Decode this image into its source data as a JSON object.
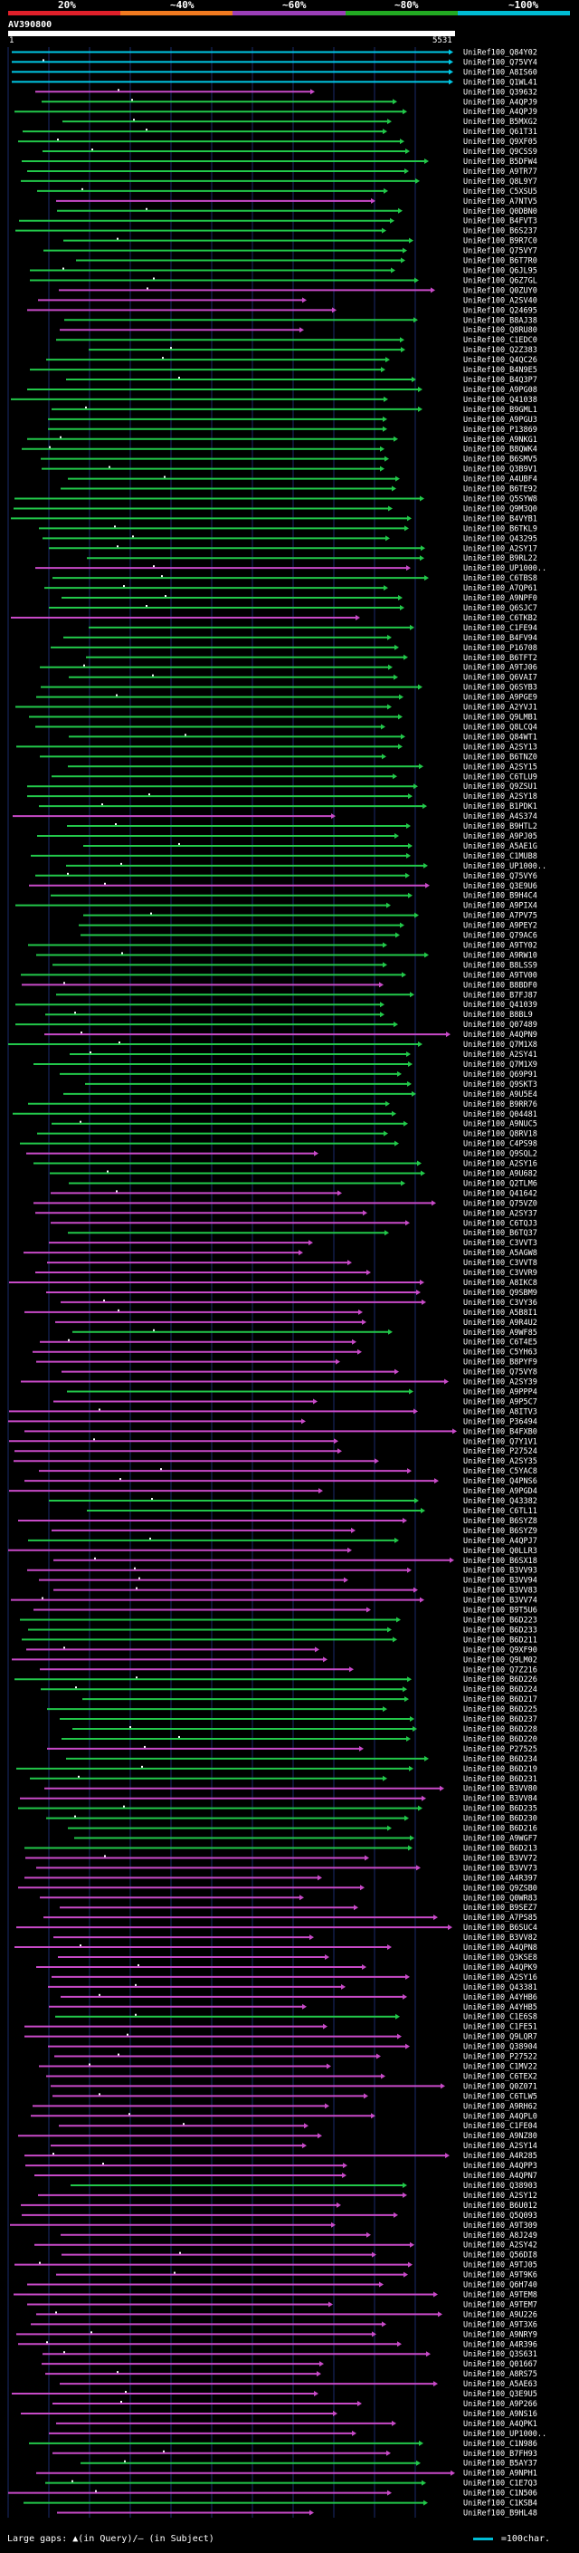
{
  "identity_scale": {
    "labels": [
      "20%",
      "~40%",
      "~60%",
      "~80%",
      "~100%"
    ],
    "colors": [
      "#e0202a",
      "#f07a20",
      "#9b3fb8",
      "#22aa22",
      "#00bcd4"
    ]
  },
  "query": {
    "name": "AV390800",
    "start": "1",
    "end": "5531"
  },
  "footer": {
    "gaps_label": "Large gaps: ▲(in Query)/— (in Subject)",
    "legend_label": "=100char."
  },
  "colors": {
    "cyan": "#00c8e6",
    "green": "#22c84a",
    "purple": "#c84ac8",
    "grid": "#1a2a6a",
    "text": "#ffffff"
  },
  "hits": [
    {
      "name": "UniRef100_Q84Y02",
      "color": "cyan"
    },
    {
      "name": "UniRef100_Q75VY4",
      "color": "cyan"
    },
    {
      "name": "UniRef100_A8IS60",
      "color": "cyan"
    },
    {
      "name": "UniRef100_Q1WL41",
      "color": "cyan"
    },
    {
      "name": "UniRef100_Q39632",
      "color": "purple"
    },
    {
      "name": "UniRef100_A4QPJ9",
      "color": "green"
    },
    {
      "name": "UniRef100_A4QPJ9",
      "color": "green"
    },
    {
      "name": "UniRef100_B5MXG2",
      "color": "green"
    },
    {
      "name": "UniRef100_Q61T31",
      "color": "green"
    },
    {
      "name": "UniRef100_Q9XF05",
      "color": "green"
    },
    {
      "name": "UniRef100_Q9CSS9",
      "color": "green"
    },
    {
      "name": "UniRef100_B5DFW4",
      "color": "green"
    },
    {
      "name": "UniRef100_A9TR77",
      "color": "green"
    },
    {
      "name": "UniRef100_Q8L9Y7",
      "color": "green"
    },
    {
      "name": "UniRef100_C5XSU5",
      "color": "green"
    },
    {
      "name": "UniRef100_A7NTV5",
      "color": "purple"
    },
    {
      "name": "UniRef100_Q0DBN0",
      "color": "green"
    },
    {
      "name": "UniRef100_B4FVT3",
      "color": "green"
    },
    {
      "name": "UniRef100_B6S237",
      "color": "green"
    },
    {
      "name": "UniRef100_B9R7C0",
      "color": "green"
    },
    {
      "name": "UniRef100_Q75VY7",
      "color": "green"
    },
    {
      "name": "UniRef100_B6T7R0",
      "color": "green"
    },
    {
      "name": "UniRef100_Q6JL95",
      "color": "green"
    },
    {
      "name": "UniRef100_Q6Z7GL",
      "color": "green"
    },
    {
      "name": "UniRef100_Q0ZUY0",
      "color": "purple"
    },
    {
      "name": "UniRef100_A2SV40",
      "color": "purple"
    },
    {
      "name": "UniRef100_Q24695",
      "color": "purple"
    },
    {
      "name": "UniRef100_B8AJ38",
      "color": "green"
    },
    {
      "name": "UniRef100_Q8RU80",
      "color": "purple"
    },
    {
      "name": "UniRef100_C1EDC0",
      "color": "green"
    },
    {
      "name": "UniRef100_Q2Z383",
      "color": "green"
    },
    {
      "name": "UniRef100_Q4QC26",
      "color": "green"
    },
    {
      "name": "UniRef100_B4N9E5",
      "color": "green"
    },
    {
      "name": "UniRef100_B4Q3P7",
      "color": "green"
    },
    {
      "name": "UniRef100_A9PG08",
      "color": "green"
    },
    {
      "name": "UniRef100_Q41038",
      "color": "green"
    },
    {
      "name": "UniRef100_B9GML1",
      "color": "green"
    },
    {
      "name": "UniRef100_A9PGU3",
      "color": "green"
    },
    {
      "name": "UniRef100_P13869",
      "color": "green"
    },
    {
      "name": "UniRef100_A9NKG1",
      "color": "green"
    },
    {
      "name": "UniRef100_B8QWK4",
      "color": "green"
    },
    {
      "name": "UniRef100_B6SMV5",
      "color": "green"
    },
    {
      "name": "UniRef100_Q3B9V1",
      "color": "green"
    },
    {
      "name": "UniRef100_A4UBF4",
      "color": "green"
    },
    {
      "name": "UniRef100_B6TE92",
      "color": "green"
    },
    {
      "name": "UniRef100_Q5SYW8",
      "color": "green"
    },
    {
      "name": "UniRef100_Q9M3Q0",
      "color": "green"
    },
    {
      "name": "UniRef100_B4VYB1",
      "color": "green"
    },
    {
      "name": "UniRef100_B6TKL9",
      "color": "green"
    },
    {
      "name": "UniRef100_Q43295",
      "color": "green"
    },
    {
      "name": "UniRef100_A2SY17",
      "color": "green"
    },
    {
      "name": "UniRef100_B9RL22",
      "color": "green"
    },
    {
      "name": "UniRef100_UP1000..",
      "color": "purple"
    },
    {
      "name": "UniRef100_C6TBS8",
      "color": "green"
    },
    {
      "name": "UniRef100_A7QP61",
      "color": "green"
    },
    {
      "name": "UniRef100_A9NPF0",
      "color": "green"
    },
    {
      "name": "UniRef100_Q6SJC7",
      "color": "green"
    },
    {
      "name": "UniRef100_C6TKB2",
      "color": "purple"
    },
    {
      "name": "UniRef100_C1FE94",
      "color": "green"
    },
    {
      "name": "UniRef100_B4FV94",
      "color": "green"
    },
    {
      "name": "UniRef100_P16708",
      "color": "green"
    },
    {
      "name": "UniRef100_B6TFT2",
      "color": "green"
    },
    {
      "name": "UniRef100_A9TJ06",
      "color": "green"
    },
    {
      "name": "UniRef100_Q6VAI7",
      "color": "green"
    },
    {
      "name": "UniRef100_Q6SYB3",
      "color": "green"
    },
    {
      "name": "UniRef100_A9PGE9",
      "color": "green"
    },
    {
      "name": "UniRef100_A2YVJ1",
      "color": "green"
    },
    {
      "name": "UniRef100_Q9LMB1",
      "color": "green"
    },
    {
      "name": "UniRef100_Q8LCQ4",
      "color": "green"
    },
    {
      "name": "UniRef100_Q84WT1",
      "color": "green"
    },
    {
      "name": "UniRef100_A2SY13",
      "color": "green"
    },
    {
      "name": "UniRef100_B6TNZ0",
      "color": "green"
    },
    {
      "name": "UniRef100_A2SY15",
      "color": "green"
    },
    {
      "name": "UniRef100_C6TLU9",
      "color": "green"
    },
    {
      "name": "UniRef100_Q9ZSU1",
      "color": "green"
    },
    {
      "name": "UniRef100_A2SY18",
      "color": "green"
    },
    {
      "name": "UniRef100_B1PDK1",
      "color": "green"
    },
    {
      "name": "UniRef100_A4S374",
      "color": "purple"
    },
    {
      "name": "UniRef100_B9HTL2",
      "color": "green"
    },
    {
      "name": "UniRef100_A9PJ05",
      "color": "green"
    },
    {
      "name": "UniRef100_A5AE1G",
      "color": "green"
    },
    {
      "name": "UniRef100_C1MUB8",
      "color": "green"
    },
    {
      "name": "UniRef100_UP1000..",
      "color": "green"
    },
    {
      "name": "UniRef100_Q75VY6",
      "color": "green"
    },
    {
      "name": "UniRef100_Q3E9U6",
      "color": "purple"
    },
    {
      "name": "UniRef100_B9H4C4",
      "color": "green"
    },
    {
      "name": "UniRef100_A9PIX4",
      "color": "green"
    },
    {
      "name": "UniRef100_A7PV75",
      "color": "green"
    },
    {
      "name": "UniRef100_A9PEY2",
      "color": "green"
    },
    {
      "name": "UniRef100_Q79AC6",
      "color": "green"
    },
    {
      "name": "UniRef100_A9TY02",
      "color": "green"
    },
    {
      "name": "UniRef100_A9RW10",
      "color": "green"
    },
    {
      "name": "UniRef100_B8LSS9",
      "color": "green"
    },
    {
      "name": "UniRef100_A9TV00",
      "color": "green"
    },
    {
      "name": "UniRef100_B8BDF0",
      "color": "purple"
    },
    {
      "name": "UniRef100_B7FJ87",
      "color": "green"
    },
    {
      "name": "UniRef100_Q41039",
      "color": "green"
    },
    {
      "name": "UniRef100_B8BL9",
      "color": "green"
    },
    {
      "name": "UniRef100_Q07489",
      "color": "green"
    },
    {
      "name": "UniRef100_A4QPN9",
      "color": "purple"
    },
    {
      "name": "UniRef100_Q7M1X8",
      "color": "green"
    },
    {
      "name": "UniRef100_A2SY41",
      "color": "green"
    },
    {
      "name": "UniRef100_Q7M1X9",
      "color": "green"
    },
    {
      "name": "UniRef100_Q69P91",
      "color": "green"
    },
    {
      "name": "UniRef100_Q9SKT3",
      "color": "green"
    },
    {
      "name": "UniRef100_A9U5E4",
      "color": "green"
    },
    {
      "name": "UniRef100_B9RR76",
      "color": "green"
    },
    {
      "name": "UniRef100_Q04481",
      "color": "green"
    },
    {
      "name": "UniRef100_A9NUC5",
      "color": "green"
    },
    {
      "name": "UniRef100_Q8RV18",
      "color": "green"
    },
    {
      "name": "UniRef100_C4PS98",
      "color": "green"
    },
    {
      "name": "UniRef100_Q9SQL2",
      "color": "purple"
    },
    {
      "name": "UniRef100_A2SY16",
      "color": "green"
    },
    {
      "name": "UniRef100_A9U682",
      "color": "green"
    },
    {
      "name": "UniRef100_Q2TLM6",
      "color": "green"
    },
    {
      "name": "UniRef100_Q41642",
      "color": "purple"
    },
    {
      "name": "UniRef100_Q75VZ0",
      "color": "purple"
    },
    {
      "name": "UniRef100_A2SY37",
      "color": "purple"
    },
    {
      "name": "UniRef100_C6TQJ3",
      "color": "purple"
    },
    {
      "name": "UniRef100_B6TQ37",
      "color": "green"
    },
    {
      "name": "UniRef100_C3VVT3",
      "color": "purple"
    },
    {
      "name": "UniRef100_A5AGW8",
      "color": "purple"
    },
    {
      "name": "UniRef100_C3VVT8",
      "color": "purple"
    },
    {
      "name": "UniRef100_C3VVR9",
      "color": "purple"
    },
    {
      "name": "UniRef100_A8IKC8",
      "color": "purple"
    },
    {
      "name": "UniRef100_Q9SBM9",
      "color": "purple"
    },
    {
      "name": "UniRef100_C3VY36",
      "color": "purple"
    },
    {
      "name": "UniRef100_A5B8I1",
      "color": "purple"
    },
    {
      "name": "UniRef100_A9R4U2",
      "color": "purple"
    },
    {
      "name": "UniRef100_A9WF85",
      "color": "green"
    },
    {
      "name": "UniRef100_C6T4E5",
      "color": "purple"
    },
    {
      "name": "UniRef100_C5YH63",
      "color": "purple"
    },
    {
      "name": "UniRef100_B8PYF9",
      "color": "purple"
    },
    {
      "name": "UniRef100_Q75VY8",
      "color": "purple"
    },
    {
      "name": "UniRef100_A2SY39",
      "color": "purple"
    },
    {
      "name": "UniRef100_A9PPP4",
      "color": "green"
    },
    {
      "name": "UniRef100_A9P5C7",
      "color": "purple"
    },
    {
      "name": "UniRef100_A8ITV3",
      "color": "purple"
    },
    {
      "name": "UniRef100_P36494",
      "color": "purple"
    },
    {
      "name": "UniRef100_B4FXB0",
      "color": "purple"
    },
    {
      "name": "UniRef100_Q7Y1V1",
      "color": "purple"
    },
    {
      "name": "UniRef100_P27524",
      "color": "purple"
    },
    {
      "name": "UniRef100_A2SY35",
      "color": "purple"
    },
    {
      "name": "UniRef100_C5YAC8",
      "color": "purple"
    },
    {
      "name": "UniRef100_Q4PNS6",
      "color": "purple"
    },
    {
      "name": "UniRef100_A9PGD4",
      "color": "purple"
    },
    {
      "name": "UniRef100_Q43382",
      "color": "green"
    },
    {
      "name": "UniRef100_C6TL11",
      "color": "green"
    },
    {
      "name": "UniRef100_B6SYZ8",
      "color": "purple"
    },
    {
      "name": "UniRef100_B6SYZ9",
      "color": "purple"
    },
    {
      "name": "UniRef100_A4QPJ7",
      "color": "green"
    },
    {
      "name": "UniRef100_Q0LLR3",
      "color": "purple"
    },
    {
      "name": "UniRef100_B6SX18",
      "color": "purple"
    },
    {
      "name": "UniRef100_B3VV93",
      "color": "purple"
    },
    {
      "name": "UniRef100_B3VV94",
      "color": "purple"
    },
    {
      "name": "UniRef100_B3VV83",
      "color": "purple"
    },
    {
      "name": "UniRef100_B3VV74",
      "color": "purple"
    },
    {
      "name": "UniRef100_B9T5U6",
      "color": "purple"
    },
    {
      "name": "UniRef100_B6D223",
      "color": "green"
    },
    {
      "name": "UniRef100_B6D233",
      "color": "green"
    },
    {
      "name": "UniRef100_B6D211",
      "color": "green"
    },
    {
      "name": "UniRef100_Q9XF90",
      "color": "purple"
    },
    {
      "name": "UniRef100_Q9LM02",
      "color": "purple"
    },
    {
      "name": "UniRef100_Q7Z216",
      "color": "purple"
    },
    {
      "name": "UniRef100_B6D226",
      "color": "green"
    },
    {
      "name": "UniRef100_B6D224",
      "color": "green"
    },
    {
      "name": "UniRef100_B6D217",
      "color": "green"
    },
    {
      "name": "UniRef100_B6D225",
      "color": "green"
    },
    {
      "name": "UniRef100_B6D237",
      "color": "green"
    },
    {
      "name": "UniRef100_B6D228",
      "color": "green"
    },
    {
      "name": "UniRef100_B6D220",
      "color": "green"
    },
    {
      "name": "UniRef100_P27525",
      "color": "purple"
    },
    {
      "name": "UniRef100_B6D234",
      "color": "green"
    },
    {
      "name": "UniRef100_B6D219",
      "color": "green"
    },
    {
      "name": "UniRef100_B6D231",
      "color": "green"
    },
    {
      "name": "UniRef100_B3VV80",
      "color": "purple"
    },
    {
      "name": "UniRef100_B3VV84",
      "color": "purple"
    },
    {
      "name": "UniRef100_B6D235",
      "color": "green"
    },
    {
      "name": "UniRef100_B6D230",
      "color": "green"
    },
    {
      "name": "UniRef100_B6D216",
      "color": "green"
    },
    {
      "name": "UniRef100_A9WGF7",
      "color": "green"
    },
    {
      "name": "UniRef100_B6D213",
      "color": "green"
    },
    {
      "name": "UniRef100_B3VV72",
      "color": "purple"
    },
    {
      "name": "UniRef100_B3VV73",
      "color": "purple"
    },
    {
      "name": "UniRef100_A4R397",
      "color": "purple"
    },
    {
      "name": "UniRef100_Q9ZSB0",
      "color": "purple"
    },
    {
      "name": "UniRef100_Q0WR83",
      "color": "purple"
    },
    {
      "name": "UniRef100_B9SEZ7",
      "color": "purple"
    },
    {
      "name": "UniRef100_A7PS85",
      "color": "purple"
    },
    {
      "name": "UniRef100_B6SUC4",
      "color": "purple"
    },
    {
      "name": "UniRef100_B3VV82",
      "color": "purple"
    },
    {
      "name": "UniRef100_A4QPN8",
      "color": "purple"
    },
    {
      "name": "UniRef100_Q3KSE8",
      "color": "purple"
    },
    {
      "name": "UniRef100_A4QPK9",
      "color": "purple"
    },
    {
      "name": "UniRef100_A2SY16",
      "color": "purple"
    },
    {
      "name": "UniRef100_Q43381",
      "color": "purple"
    },
    {
      "name": "UniRef100_A4YHB6",
      "color": "purple"
    },
    {
      "name": "UniRef100_A4YHB5",
      "color": "purple"
    },
    {
      "name": "UniRef100_C1E6S8",
      "color": "green"
    },
    {
      "name": "UniRef100_C1FE51",
      "color": "purple"
    },
    {
      "name": "UniRef100_Q9LQR7",
      "color": "purple"
    },
    {
      "name": "UniRef100_Q38904",
      "color": "purple"
    },
    {
      "name": "UniRef100_P27522",
      "color": "purple"
    },
    {
      "name": "UniRef100_C1MV22",
      "color": "purple"
    },
    {
      "name": "UniRef100_C6TEX2",
      "color": "purple"
    },
    {
      "name": "UniRef100_Q0Z071",
      "color": "purple"
    },
    {
      "name": "UniRef100_C6TLW5",
      "color": "purple"
    },
    {
      "name": "UniRef100_A9RH62",
      "color": "purple"
    },
    {
      "name": "UniRef100_A4QPL0",
      "color": "purple"
    },
    {
      "name": "UniRef100_C1FE04",
      "color": "purple"
    },
    {
      "name": "UniRef100_A9NZ80",
      "color": "purple"
    },
    {
      "name": "UniRef100_A2SY14",
      "color": "purple"
    },
    {
      "name": "UniRef100_A4R285",
      "color": "purple"
    },
    {
      "name": "UniRef100_A4QPP3",
      "color": "purple"
    },
    {
      "name": "UniRef100_A4QPN7",
      "color": "purple"
    },
    {
      "name": "UniRef100_Q38903",
      "color": "green"
    },
    {
      "name": "UniRef100_A2SY12",
      "color": "purple"
    },
    {
      "name": "UniRef100_B6U012",
      "color": "purple"
    },
    {
      "name": "UniRef100_Q5Q093",
      "color": "purple"
    },
    {
      "name": "UniRef100_A9T309",
      "color": "purple"
    },
    {
      "name": "UniRef100_A8J249",
      "color": "purple"
    },
    {
      "name": "UniRef100_A2SY42",
      "color": "purple"
    },
    {
      "name": "UniRef100_Q56DI8",
      "color": "purple"
    },
    {
      "name": "UniRef100_A9TJ05",
      "color": "purple"
    },
    {
      "name": "UniRef100_A9T9K6",
      "color": "purple"
    },
    {
      "name": "UniRef100_Q6H740",
      "color": "purple"
    },
    {
      "name": "UniRef100_A9TEM8",
      "color": "purple"
    },
    {
      "name": "UniRef100_A9TEM7",
      "color": "purple"
    },
    {
      "name": "UniRef100_A9U226",
      "color": "purple"
    },
    {
      "name": "UniRef100_A9T3X6",
      "color": "purple"
    },
    {
      "name": "UniRef100_A9NRY9",
      "color": "purple"
    },
    {
      "name": "UniRef100_A4R396",
      "color": "purple"
    },
    {
      "name": "UniRef100_Q3S631",
      "color": "purple"
    },
    {
      "name": "UniRef100_Q01667",
      "color": "purple"
    },
    {
      "name": "UniRef100_A8RS75",
      "color": "purple"
    },
    {
      "name": "UniRef100_A5AE63",
      "color": "purple"
    },
    {
      "name": "UniRef100_Q3E9U5",
      "color": "purple"
    },
    {
      "name": "UniRef100_A9P266",
      "color": "purple"
    },
    {
      "name": "UniRef100_A9NS16",
      "color": "purple"
    },
    {
      "name": "UniRef100_A4QPK1",
      "color": "purple"
    },
    {
      "name": "UniRef100_UP1000..",
      "color": "purple"
    },
    {
      "name": "UniRef100_C1N986",
      "color": "green"
    },
    {
      "name": "UniRef100_B7FH93",
      "color": "purple"
    },
    {
      "name": "UniRef100_B5AY37",
      "color": "green"
    },
    {
      "name": "UniRef100_A9NPH1",
      "color": "purple"
    },
    {
      "name": "UniRef100_C1E7Q3",
      "color": "green"
    },
    {
      "name": "UniRef100_C1N506",
      "color": "purple"
    },
    {
      "name": "UniRef100_C1KSB4",
      "color": "green"
    },
    {
      "name": "UniRef100_B9HL48",
      "color": "purple"
    }
  ]
}
